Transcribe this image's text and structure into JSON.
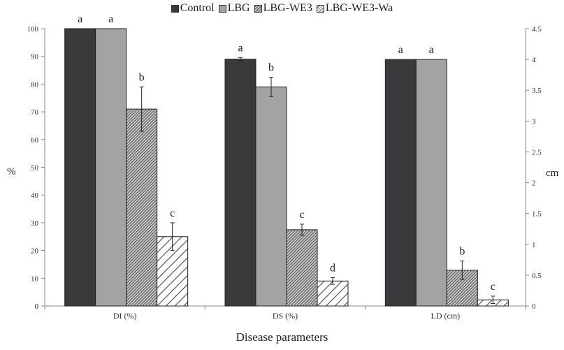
{
  "chart_data": {
    "type": "bar",
    "title": "",
    "xlabel": "Disease parameters",
    "ylabel": "%",
    "ylabel_right": "cm",
    "ylim": [
      0,
      100
    ],
    "ylim_right": [
      0,
      4.5
    ],
    "yticks": [
      "0",
      "10",
      "20",
      "30",
      "40",
      "50",
      "60",
      "70",
      "80",
      "90",
      "100"
    ],
    "yticks_right": [
      "0",
      "0.5",
      "1",
      "1.5",
      "2",
      "2.5",
      "3",
      "3.5",
      "4",
      "4.5"
    ],
    "legend_position": "top-center",
    "series_names": [
      "Control",
      "LBG",
      "LBG-WE3",
      "LBG-WE3-Wa"
    ],
    "series_colors": [
      "#3a3a3c",
      "#a3a3a5",
      "#8a8a8a",
      "#ffffff"
    ],
    "groups": [
      {
        "category": "DI (%)",
        "axis": "left",
        "values": [
          100,
          100,
          71,
          25
        ],
        "errors": [
          0,
          0,
          8,
          5
        ],
        "letters": [
          "a",
          "a",
          "b",
          "c"
        ]
      },
      {
        "category": "DS (%)",
        "axis": "left",
        "values": [
          89,
          79,
          27.5,
          9
        ],
        "errors": [
          0.6,
          3.5,
          2,
          1.2
        ],
        "letters": [
          "a",
          "b",
          "c",
          "d"
        ]
      },
      {
        "category": "LD (cm)",
        "axis": "right",
        "values": [
          4,
          4,
          0.58,
          0.1
        ],
        "errors": [
          0,
          0,
          0.15,
          0.06
        ],
        "letters": [
          "a",
          "a",
          "b",
          "c"
        ]
      }
    ]
  }
}
